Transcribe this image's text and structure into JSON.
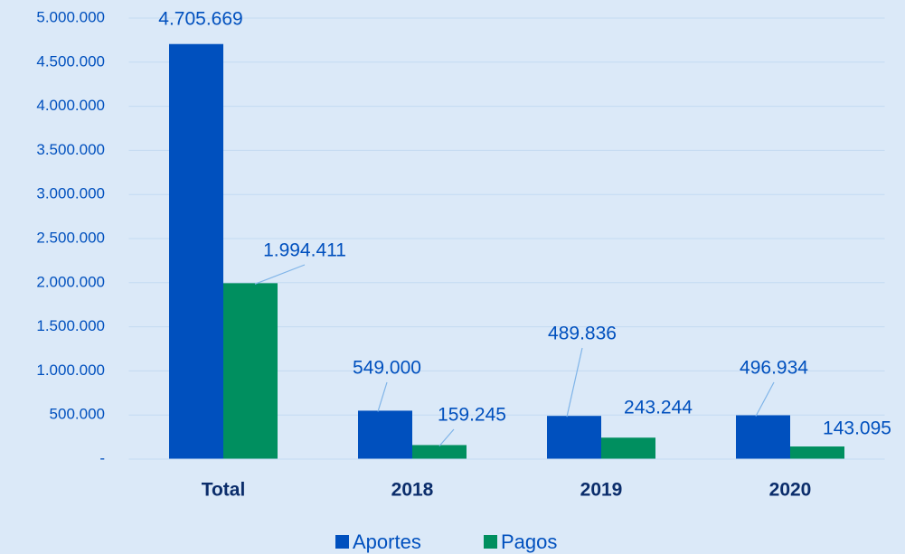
{
  "chart_data": {
    "type": "bar",
    "categories": [
      "Total",
      "2018",
      "2019",
      "2020"
    ],
    "series": [
      {
        "name": "Aportes",
        "color": "#0050be",
        "values": [
          4705669,
          549000,
          489836,
          496934
        ],
        "value_labels": [
          "4.705.669",
          "549.000",
          "489.836",
          "496.934"
        ]
      },
      {
        "name": "Pagos",
        "color": "#008f5f",
        "values": [
          1994411,
          159245,
          243244,
          143095
        ],
        "value_labels": [
          "1.994.411",
          "159.245",
          "243.244",
          "143.095"
        ]
      }
    ],
    "ylim": [
      0,
      5000000
    ],
    "yticks": [
      {
        "value": 0,
        "label": "-"
      },
      {
        "value": 500000,
        "label": "500.000"
      },
      {
        "value": 1000000,
        "label": "1.000.000"
      },
      {
        "value": 1500000,
        "label": "1.500.000"
      },
      {
        "value": 2000000,
        "label": "2.000.000"
      },
      {
        "value": 2500000,
        "label": "2.500.000"
      },
      {
        "value": 3000000,
        "label": "3.000.000"
      },
      {
        "value": 3500000,
        "label": "3.500.000"
      },
      {
        "value": 4000000,
        "label": "4.000.000"
      },
      {
        "value": 4500000,
        "label": "4.500.000"
      },
      {
        "value": 5000000,
        "label": "5.000.000"
      }
    ],
    "grid": true,
    "legend": "bottom"
  }
}
